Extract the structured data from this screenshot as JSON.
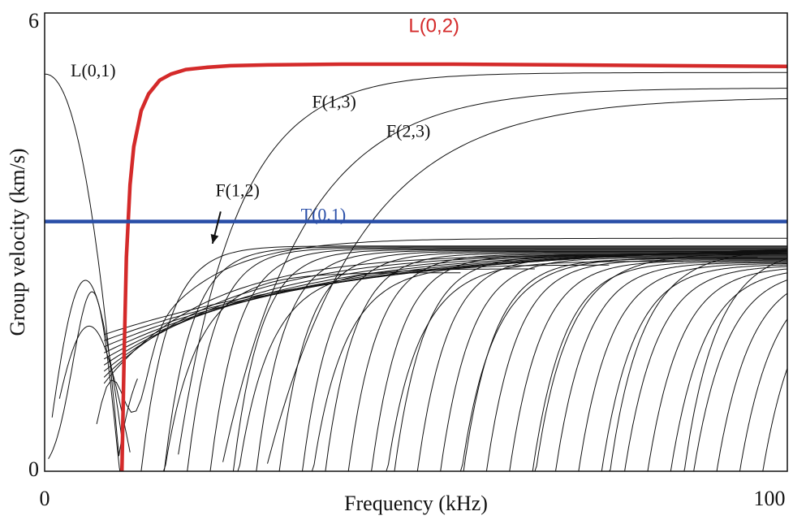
{
  "chart_data": {
    "type": "line",
    "xlabel": "Frequency (kHz)",
    "ylabel": "Group velocity (km/s)",
    "xlim": [
      0,
      100
    ],
    "ylim": [
      0,
      6
    ],
    "x_ticks": [
      "0",
      "100"
    ],
    "y_ticks": [
      "6",
      "0"
    ],
    "grid": false,
    "colors": {
      "L(0,2)": "#d42a2a",
      "T(0,1)": "#2a4fa8",
      "other_modes": "#111111"
    },
    "highlighted_series": [
      {
        "name": "L(0,2)",
        "color": "#d42a2a",
        "x": [
          10.4,
          10.7,
          11.0,
          11.5,
          12.0,
          13.0,
          14.0,
          15.5,
          17.0,
          19.0,
          22.0,
          25.0,
          30.0,
          40.0,
          55.0,
          70.0,
          85.0,
          100.0
        ],
        "y": [
          0.0,
          1.5,
          2.8,
          3.75,
          4.25,
          4.72,
          4.94,
          5.12,
          5.2,
          5.26,
          5.29,
          5.31,
          5.32,
          5.33,
          5.33,
          5.32,
          5.31,
          5.3
        ]
      },
      {
        "name": "T(0,1)",
        "color": "#2a4fa8",
        "x": [
          0,
          100
        ],
        "y": [
          3.27,
          3.27
        ]
      }
    ],
    "annotations": [
      {
        "text": "L(0,2)",
        "x": 49,
        "y": 5.75,
        "color": "#d42a2a"
      },
      {
        "text": "L(0,1)",
        "x": 3.5,
        "y": 5.17,
        "color": "#111111"
      },
      {
        "text": "F(1,3)",
        "x": 36,
        "y": 4.76,
        "color": "#111111"
      },
      {
        "text": "F(2,3)",
        "x": 46,
        "y": 4.38,
        "color": "#111111"
      },
      {
        "text": "F(1,2)",
        "x": 23,
        "y": 3.6,
        "color": "#111111"
      },
      {
        "text": "T(0,1)",
        "x": 34.5,
        "y": 3.28,
        "color": "#2a4fa8"
      }
    ],
    "arrow": {
      "label": "F(1,2)",
      "from": [
        23.7,
        3.4
      ],
      "to": [
        22.6,
        2.98
      ]
    }
  }
}
